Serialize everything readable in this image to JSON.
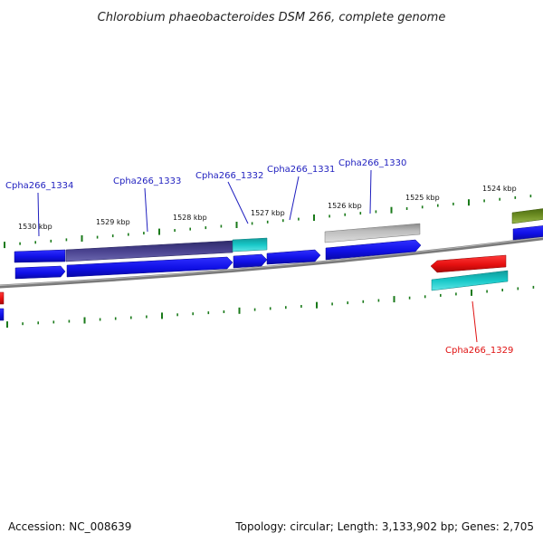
{
  "title": "Chlorobium phaeobacteroides DSM 266, complete genome",
  "footer": {
    "accession": "Accession: NC_008639",
    "summary": "Topology: circular; Length: 3,133,902 bp; Genes: 2,705"
  },
  "colors": {
    "backbone": "#808080",
    "tick": "#1a7a1a",
    "label_forward": "#1f1fbf",
    "label_reverse": "#e01010",
    "cds_blue": "#1010e6",
    "cds_purple": "#4a4390",
    "cds_cyan": "#18c8c8",
    "cds_gray": "#bdbdbd",
    "cds_olive": "#6f8f25",
    "cds_red": "#e61010"
  },
  "kbp_labels": [
    "1530 kbp",
    "1529 kbp",
    "1528 kbp",
    "1527 kbp",
    "1526 kbp",
    "1525 kbp",
    "1524 kbp"
  ],
  "gene_labels": [
    {
      "text": "Cpha266_1334",
      "strand": "forward"
    },
    {
      "text": "Cpha266_1333",
      "strand": "forward"
    },
    {
      "text": "Cpha266_1332",
      "strand": "forward"
    },
    {
      "text": "Cpha266_1331",
      "strand": "forward"
    },
    {
      "text": "Cpha266_1330",
      "strand": "forward"
    },
    {
      "text": "Cpha266_1329",
      "strand": "reverse"
    }
  ]
}
